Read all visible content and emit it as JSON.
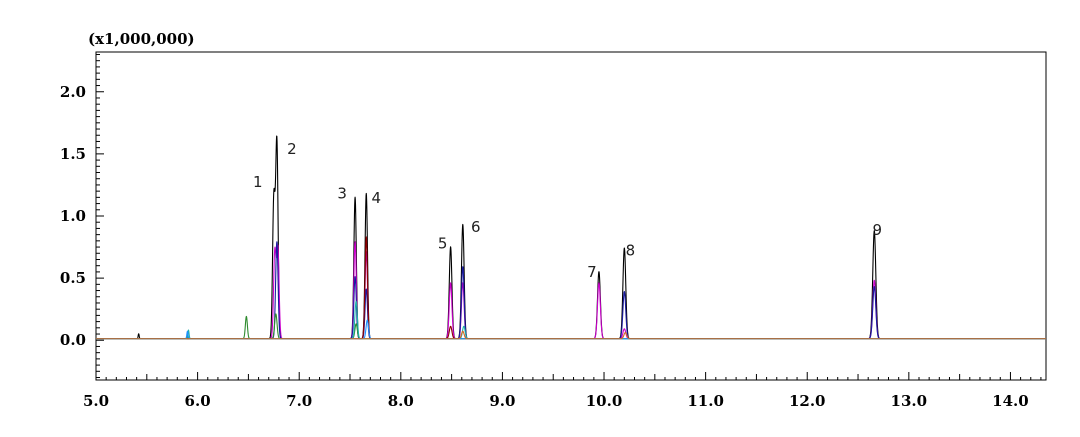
{
  "chart_data": {
    "type": "line",
    "title": "",
    "xlabel": "",
    "ylabel": "",
    "y_scale_label": "(x1,000,000)",
    "xlim": [
      5.0,
      14.35
    ],
    "ylim": [
      -0.32,
      2.32
    ],
    "x_ticks": [
      5.0,
      6.0,
      7.0,
      8.0,
      9.0,
      10.0,
      11.0,
      12.0,
      13.0,
      14.0
    ],
    "x_tick_labels": [
      "5.0",
      "6.0",
      "7.0",
      "8.0",
      "9.0",
      "10.0",
      "11.0",
      "12.0",
      "13.0",
      "14.0"
    ],
    "y_ticks": [
      0.0,
      0.5,
      1.0,
      1.5,
      2.0
    ],
    "y_tick_labels": [
      "0.0",
      "0.5",
      "1.0",
      "1.5",
      "2.0"
    ],
    "grid": false,
    "legend": "none",
    "peaks": [
      {
        "label": "1",
        "x": 6.75,
        "y": 1.12
      },
      {
        "label": "2",
        "x": 6.78,
        "y": 1.58
      },
      {
        "label": "3",
        "x": 7.55,
        "y": 1.14
      },
      {
        "label": "4",
        "x": 7.66,
        "y": 1.17
      },
      {
        "label": "5",
        "x": 8.49,
        "y": 0.74
      },
      {
        "label": "6",
        "x": 8.61,
        "y": 0.92
      },
      {
        "label": "7",
        "x": 9.95,
        "y": 0.54
      },
      {
        "label": "8",
        "x": 10.2,
        "y": 0.73
      },
      {
        "label": "9",
        "x": 12.66,
        "y": 0.87
      }
    ],
    "series": [
      {
        "color": "#000000",
        "peaks": [
          [
            5.42,
            0.04,
            0.005
          ],
          [
            5.9,
            0.03,
            0.005
          ],
          [
            6.75,
            1.12,
            0.012
          ],
          [
            6.78,
            1.58,
            0.012
          ],
          [
            7.55,
            1.14,
            0.012
          ],
          [
            7.66,
            1.17,
            0.012
          ],
          [
            8.49,
            0.74,
            0.013
          ],
          [
            8.61,
            0.92,
            0.013
          ],
          [
            9.95,
            0.54,
            0.014
          ],
          [
            10.2,
            0.73,
            0.014
          ],
          [
            12.66,
            0.87,
            0.015
          ]
        ]
      },
      {
        "color": "#cc00cc",
        "peaks": [
          [
            6.76,
            0.7,
            0.012
          ],
          [
            6.79,
            0.72,
            0.012
          ],
          [
            7.55,
            0.78,
            0.012
          ],
          [
            7.66,
            0.7,
            0.012
          ],
          [
            8.49,
            0.45,
            0.013
          ],
          [
            8.61,
            0.45,
            0.013
          ],
          [
            9.95,
            0.45,
            0.014
          ],
          [
            10.2,
            0.08,
            0.014
          ],
          [
            12.66,
            0.47,
            0.015
          ]
        ]
      },
      {
        "color": "#1a1aa0",
        "peaks": [
          [
            6.78,
            0.78,
            0.012
          ],
          [
            7.55,
            0.5,
            0.012
          ],
          [
            7.66,
            0.4,
            0.012
          ],
          [
            8.61,
            0.58,
            0.013
          ],
          [
            10.2,
            0.38,
            0.014
          ],
          [
            12.66,
            0.42,
            0.015
          ]
        ]
      },
      {
        "color": "#8b0000",
        "peaks": [
          [
            7.66,
            0.82,
            0.012
          ],
          [
            8.49,
            0.1,
            0.013
          ]
        ]
      },
      {
        "color": "#2e8b2e",
        "peaks": [
          [
            6.48,
            0.18,
            0.01
          ],
          [
            6.77,
            0.2,
            0.012
          ],
          [
            7.56,
            0.12,
            0.012
          ]
        ]
      },
      {
        "color": "#20b2aa",
        "peaks": [
          [
            5.91,
            0.07,
            0.006
          ],
          [
            7.56,
            0.3,
            0.012
          ],
          [
            8.62,
            0.1,
            0.013
          ]
        ]
      },
      {
        "color": "#1e90ff",
        "peaks": [
          [
            5.9,
            0.06,
            0.006
          ],
          [
            7.67,
            0.15,
            0.012
          ]
        ]
      },
      {
        "color": "#d2691e",
        "peaks": [
          [
            8.61,
            0.06,
            0.013
          ],
          [
            10.21,
            0.05,
            0.014
          ]
        ]
      }
    ]
  }
}
